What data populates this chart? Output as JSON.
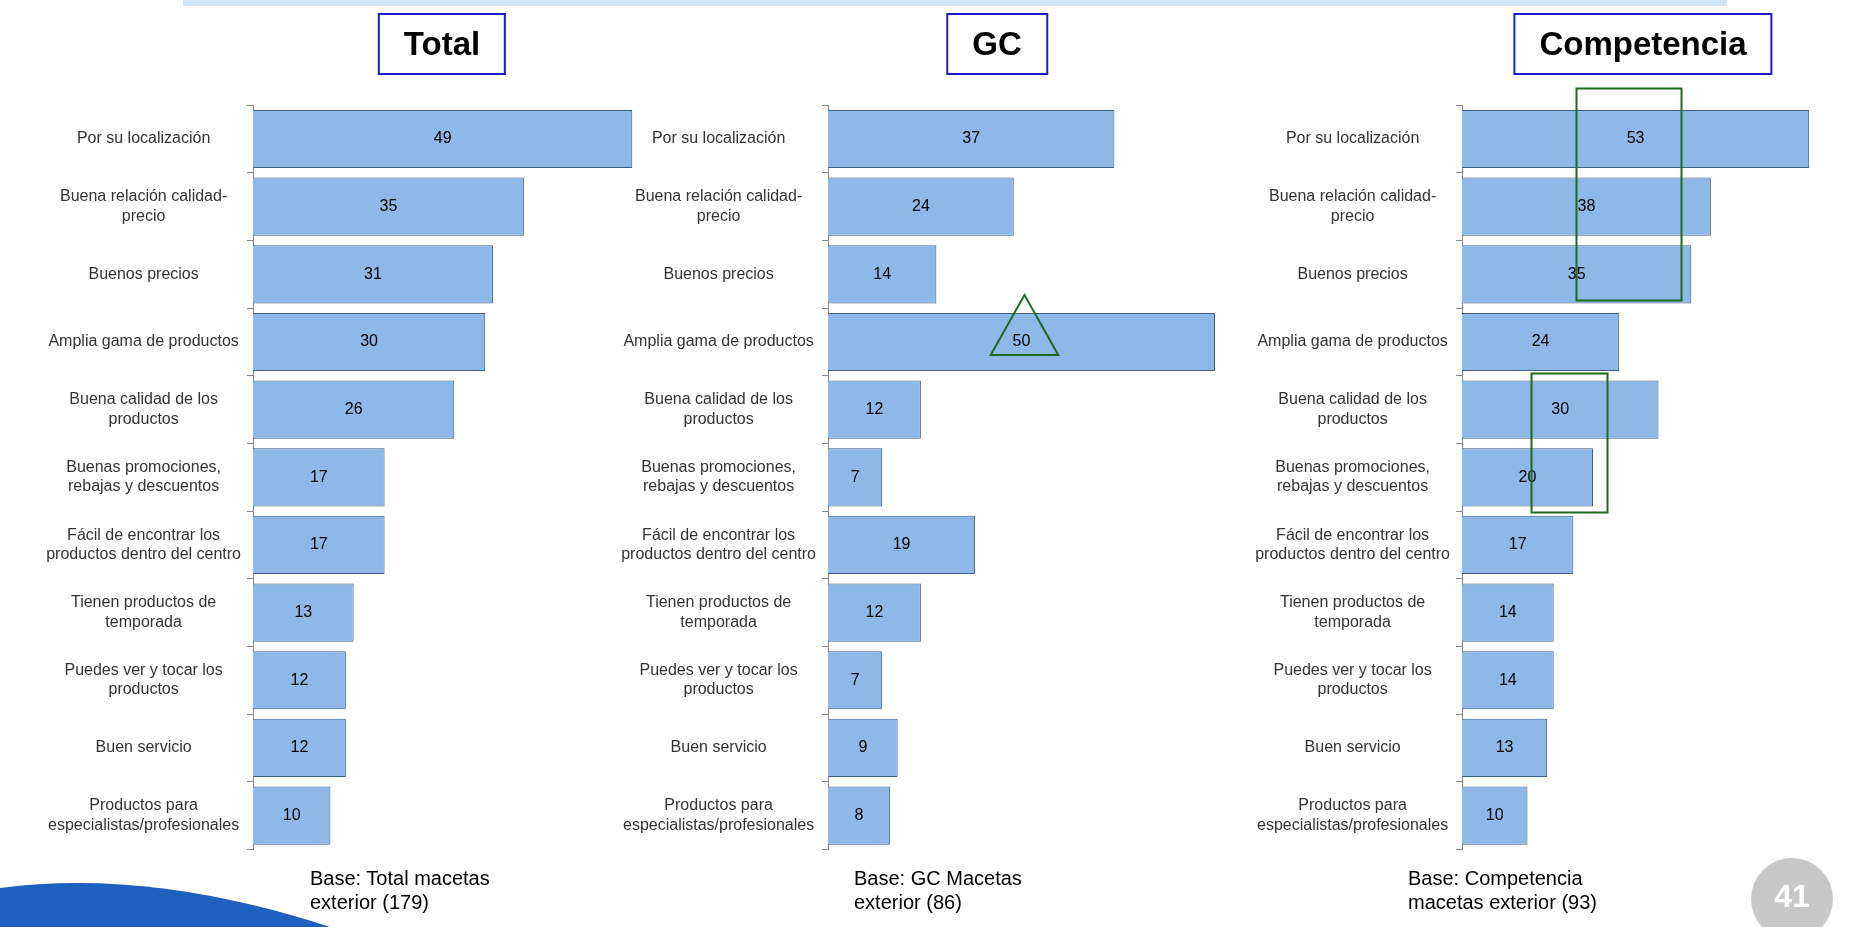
{
  "chart_data": [
    {
      "type": "bar",
      "orientation": "horizontal",
      "title": "Total",
      "categories": [
        "Por su localización",
        "Buena relación calidad-precio",
        "Buenos precios",
        "Amplia gama de productos",
        "Buena calidad de los productos",
        "Buenas promociones, rebajas y descuentos",
        "Fácil de encontrar los productos dentro del centro",
        "Tienen productos de temporada",
        "Puedes ver y tocar los productos",
        "Buen servicio",
        "Productos para especialistas/profesionales"
      ],
      "values": [
        49,
        35,
        31,
        30,
        26,
        17,
        17,
        13,
        12,
        12,
        10
      ],
      "color": "#8db8e8",
      "data_labels": true,
      "legend": false,
      "annotations": [
        "Base: Total  macetas exterior (179)"
      ]
    },
    {
      "type": "bar",
      "orientation": "horizontal",
      "title": "GC",
      "categories": [
        "Por su localización",
        "Buena relación calidad-precio",
        "Buenos precios",
        "Amplia gama de productos",
        "Buena calidad de los productos",
        "Buenas promociones, rebajas y descuentos",
        "Fácil de encontrar los productos dentro del centro",
        "Tienen productos de temporada",
        "Puedes ver y tocar los productos",
        "Buen servicio",
        "Productos para especialistas/profesionales"
      ],
      "values": [
        37,
        24,
        14,
        50,
        12,
        7,
        19,
        12,
        7,
        9,
        8
      ],
      "color": "#8db8e8",
      "data_labels": true,
      "legend": false,
      "annotations": [
        "Base: GC  Macetas exterior (86)"
      ]
    },
    {
      "type": "bar",
      "orientation": "horizontal",
      "title": "Competencia",
      "categories": [
        "Por su localización",
        "Buena relación calidad-precio",
        "Buenos precios",
        "Amplia gama de productos",
        "Buena calidad de los productos",
        "Buenas promociones, rebajas y descuentos",
        "Fácil de encontrar los productos dentro del centro",
        "Tienen productos de temporada",
        "Puedes ver y tocar los productos",
        "Buen servicio",
        "Productos para especialistas/profesionales"
      ],
      "values": [
        53,
        38,
        35,
        24,
        30,
        20,
        17,
        14,
        14,
        13,
        10
      ],
      "color": "#8db8e8",
      "data_labels": true,
      "legend": false,
      "annotations": [
        "Base: Competencia macetas exterior (93)",
        "41"
      ]
    }
  ]
}
